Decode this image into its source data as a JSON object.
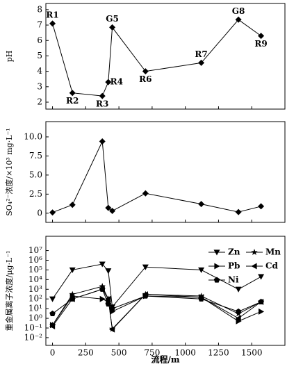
{
  "chart_data": [
    {
      "type": "line",
      "y_label": "pH",
      "marker": "diamond",
      "color": "#000000",
      "x": [
        0,
        150,
        375,
        420,
        450,
        700,
        1120,
        1400,
        1570
      ],
      "values": [
        7.1,
        2.6,
        2.4,
        3.3,
        6.85,
        4.0,
        4.55,
        7.35,
        6.3
      ],
      "point_labels": [
        "R1",
        "R2",
        "R3",
        "R4",
        "G5",
        "R6",
        "R7",
        "G8",
        "R9"
      ],
      "xlim": [
        -50,
        1750
      ],
      "ylim": [
        1.55,
        8.4
      ],
      "yticks": [
        2,
        3,
        4,
        5,
        6,
        7,
        8
      ]
    },
    {
      "type": "line",
      "y_label": "SO₄²⁻浓度/×10³ mg·L⁻¹",
      "marker": "diamond",
      "color": "#000000",
      "x": [
        0,
        150,
        375,
        420,
        450,
        700,
        1120,
        1400,
        1570
      ],
      "values": [
        0.1,
        1.1,
        9.4,
        0.7,
        0.3,
        2.6,
        1.2,
        0.15,
        0.9
      ],
      "xlim": [
        -50,
        1750
      ],
      "ylim": [
        -1.2,
        12
      ],
      "yticks": [
        0,
        2.5,
        {
          "value": 5,
          "label": "5.0"
        },
        7.5,
        {
          "value": 10,
          "label": "10.0"
        }
      ]
    },
    {
      "type": "line",
      "y_label": "重金属离子浓度/μg·L⁻¹",
      "x_label": "流程/m",
      "log_scale": true,
      "x": [
        0,
        150,
        375,
        420,
        450,
        700,
        1120,
        1400,
        1570
      ],
      "series": [
        {
          "name": "Zn",
          "marker": "triangle-down",
          "color": "#000000",
          "values": [
            100,
            100000,
            400000,
            80000,
            15,
            200000,
            100000,
            1000,
            20000
          ]
        },
        {
          "name": "Mn",
          "marker": "star",
          "color": "#000000",
          "values": [
            0.2,
            300,
            2000,
            100,
            0.08,
            300,
            200,
            3,
            50
          ]
        },
        {
          "name": "Pb",
          "marker": "triangle-right",
          "color": "#000000",
          "values": [
            0.2,
            200,
            100,
            50,
            5,
            200,
            150,
            0.5,
            5
          ]
        },
        {
          "name": "Cd",
          "marker": "triangle-left",
          "color": "#000000",
          "values": [
            0.15,
            100,
            1000,
            100,
            0.07,
            300,
            150,
            1,
            50
          ]
        },
        {
          "name": "Ni",
          "marker": "pentagon",
          "color": "#000000",
          "values": [
            3,
            100,
            1000,
            30,
            10,
            200,
            100,
            5,
            50
          ]
        }
      ],
      "xlim": [
        -50,
        1750
      ],
      "ylim": [
        0.0016,
        300000000
      ],
      "xticks": [
        0,
        250,
        500,
        750,
        1000,
        1250,
        1500
      ],
      "yticks": [
        {
          "value": 0.01,
          "label": "10⁻²"
        },
        {
          "value": 0.1,
          "label": "10⁻¹"
        },
        {
          "value": 1,
          "label": "10⁰"
        },
        {
          "value": 10,
          "label": "10¹"
        },
        {
          "value": 100,
          "label": "10²"
        },
        {
          "value": 1000,
          "label": "10³"
        },
        {
          "value": 10000,
          "label": "10⁴"
        },
        {
          "value": 100000,
          "label": "10⁵"
        },
        {
          "value": 1000000,
          "label": "10⁶"
        },
        {
          "value": 10000000,
          "label": "10⁷"
        }
      ]
    }
  ]
}
